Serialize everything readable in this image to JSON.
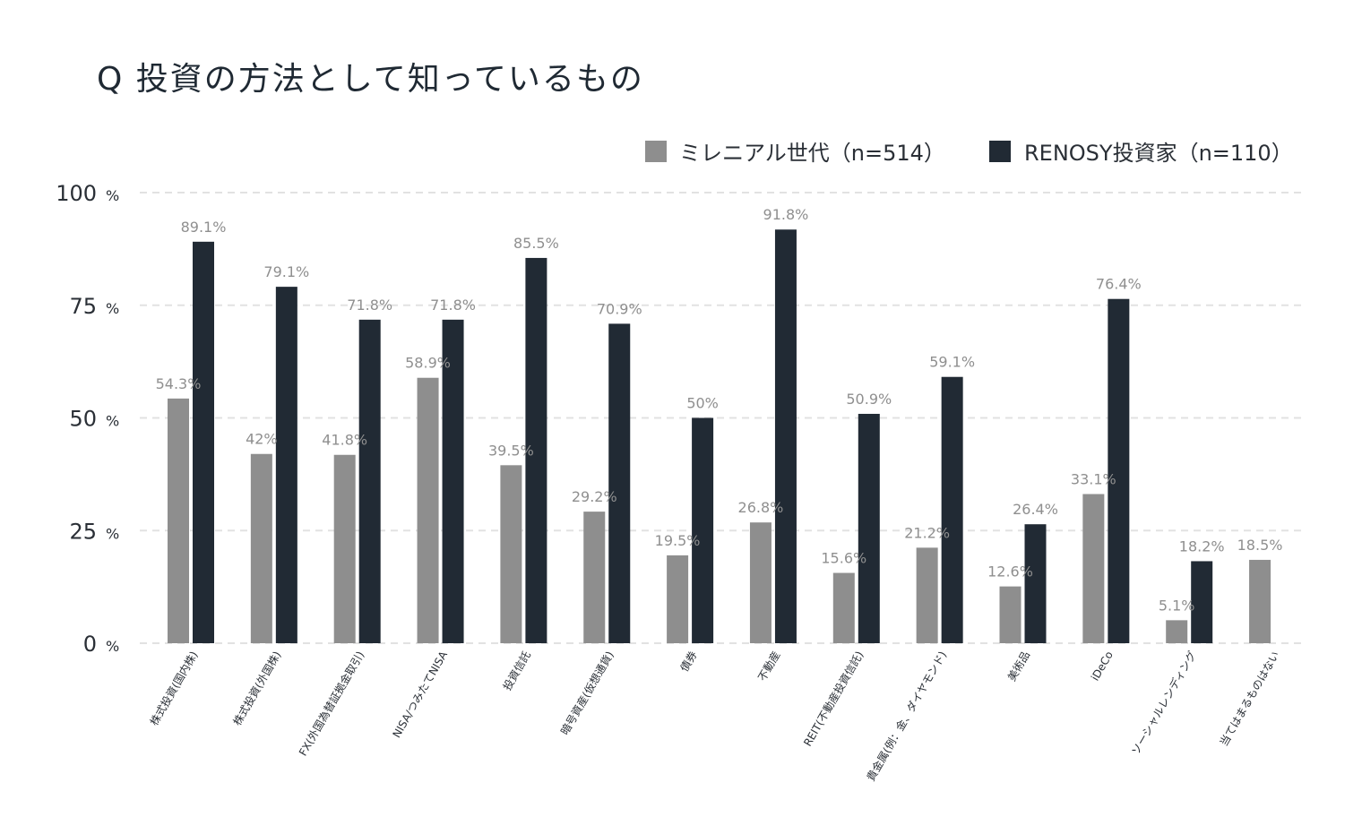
{
  "chart_data": {
    "type": "bar",
    "title": "Q 投資の方法として知っているもの",
    "xlabel": "",
    "ylabel": "",
    "ylim": [
      0,
      100
    ],
    "yticks": [
      0,
      25,
      50,
      75,
      100
    ],
    "ytick_unit": "%",
    "grid": true,
    "legend_position": "top-right",
    "categories": [
      "株式投資(国内株)",
      "株式投資(外国株)",
      "FX(外国為替証拠金取引)",
      "NISA/つみたてNISA",
      "投資信託",
      "暗号資産(仮想通貨)",
      "債券",
      "不動産",
      "REIT(不動産投資信託)",
      "貴金属(例：金、ダイヤモンド)",
      "美術品",
      "iDeCo",
      "ソーシャルレンディング",
      "当てはまるものはない"
    ],
    "series": [
      {
        "name": "ミレニアル世代（n=514）",
        "color": "#8e8e8e",
        "values": [
          54.3,
          42,
          41.8,
          58.9,
          39.5,
          29.2,
          19.5,
          26.8,
          15.6,
          21.2,
          12.6,
          33.1,
          5.1,
          18.5
        ],
        "labels": [
          "54.3%",
          "42%",
          "41.8%",
          "58.9%",
          "39.5%",
          "29.2%",
          "19.5%",
          "26.8%",
          "15.6%",
          "21.2%",
          "12.6%",
          "33.1%",
          "5.1%",
          "18.5%"
        ]
      },
      {
        "name": "RENOSY投資家（n=110）",
        "color": "#212a34",
        "values": [
          89.1,
          79.1,
          71.8,
          71.8,
          85.5,
          70.9,
          50,
          91.8,
          50.9,
          59.1,
          26.4,
          76.4,
          18.2,
          null
        ],
        "labels": [
          "89.1%",
          "79.1%",
          "71.8%",
          "71.8%",
          "85.5%",
          "70.9%",
          "50%",
          "91.8%",
          "50.9%",
          "59.1%",
          "26.4%",
          "76.4%",
          "18.2%",
          null
        ]
      }
    ]
  }
}
